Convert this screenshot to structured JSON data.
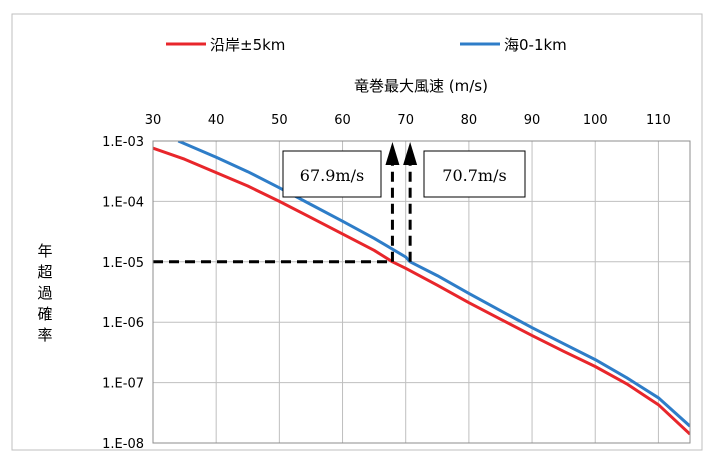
{
  "chart_data": {
    "type": "line",
    "xlabel": "竜巻最大風速 (m/s)",
    "ylabel": "年超過確率",
    "xlim": [
      30,
      115
    ],
    "ylim": [
      1e-08,
      0.001
    ],
    "y_scale": "log",
    "grid": true,
    "legend_position": "top",
    "x_ticks": [
      "30",
      "40",
      "50",
      "60",
      "70",
      "80",
      "90",
      "100",
      "110"
    ],
    "y_ticks": [
      "1.E-03",
      "1.E-04",
      "1.E-05",
      "1.E-06",
      "1.E-07",
      "1.E-08"
    ],
    "series": [
      {
        "name": "沿岸±5km",
        "color": "#e8262b",
        "x": [
          30,
          35,
          40,
          45,
          50,
          55,
          60,
          65,
          67.9,
          70,
          75,
          80,
          85,
          90,
          95,
          100,
          105,
          110,
          115
        ],
        "y": [
          0.00076,
          0.0005,
          0.0003,
          0.00018,
          0.0001,
          5.4e-05,
          2.9e-05,
          1.55e-05,
          1e-05,
          7.8e-06,
          4.1e-06,
          2.1e-06,
          1.12e-06,
          6e-07,
          3.3e-07,
          1.85e-07,
          9.5e-08,
          4.3e-08,
          1.4e-08
        ]
      },
      {
        "name": "海0-1km",
        "color": "#2e7dc8",
        "x": [
          34,
          40,
          45,
          50,
          55,
          60,
          65,
          70,
          70.7,
          75,
          80,
          85,
          90,
          95,
          100,
          105,
          110,
          115
        ],
        "y": [
          0.001,
          0.00054,
          0.00031,
          0.000168,
          8.9e-05,
          4.7e-05,
          2.45e-05,
          1.2e-05,
          1e-05,
          5.9e-06,
          3e-06,
          1.55e-06,
          8.1e-07,
          4.4e-07,
          2.4e-07,
          1.2e-07,
          5.6e-08,
          1.9e-08
        ]
      }
    ],
    "annotations": [
      {
        "label": "67.9m/s",
        "x": 67.9,
        "y": 1e-05
      },
      {
        "label": "70.7m/s",
        "x": 70.7,
        "y": 1e-05
      }
    ],
    "reference_level": 1e-05
  }
}
